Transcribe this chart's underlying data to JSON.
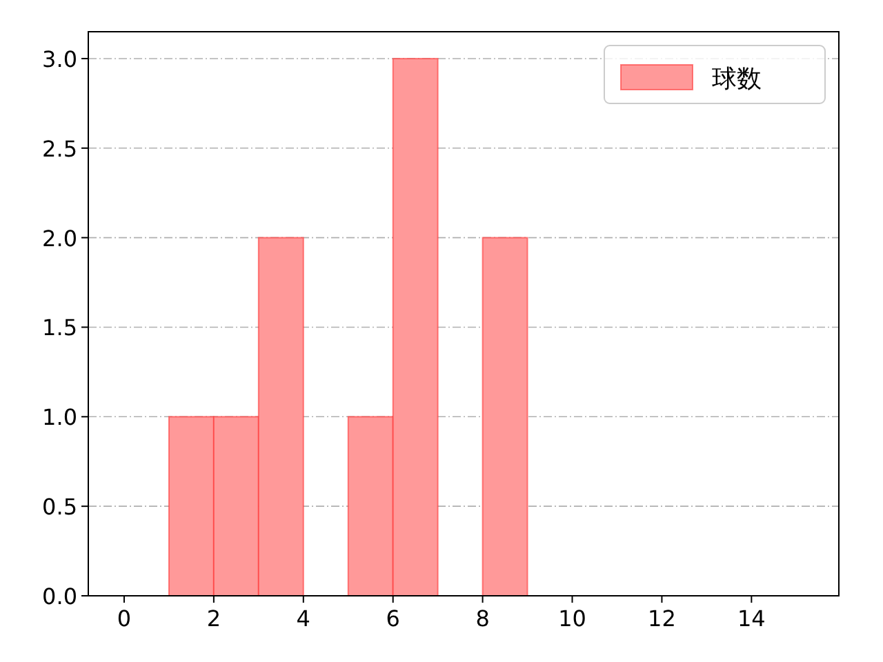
{
  "chart_data": {
    "type": "histogram",
    "bins": [
      1,
      2,
      3,
      4,
      5,
      6,
      7,
      8,
      9
    ],
    "series": [
      {
        "name": "球数",
        "color": "#ff9999",
        "values": [
          1,
          1,
          2,
          0,
          1,
          3,
          0,
          2
        ]
      }
    ],
    "xlim": [
      -0.8,
      15.95
    ],
    "xticks": [
      0,
      2,
      4,
      6,
      8,
      10,
      12,
      14
    ],
    "ylim": [
      0,
      3.15
    ],
    "yticks": [
      {
        "value": 0,
        "label": "0.0"
      },
      {
        "value": 0.5,
        "label": "0.5"
      },
      {
        "value": 1,
        "label": "1.0"
      },
      {
        "value": 1.5,
        "label": "1.5"
      },
      {
        "value": 2,
        "label": "2.0"
      },
      {
        "value": 2.5,
        "label": "2.5"
      },
      {
        "value": 3,
        "label": "3.0"
      }
    ],
    "grid": "y",
    "legend": "top right"
  }
}
